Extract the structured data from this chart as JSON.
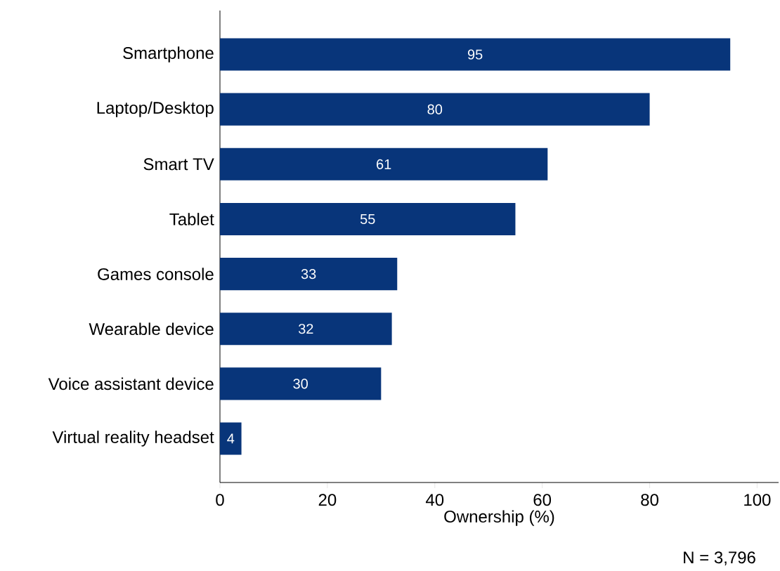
{
  "chart_data": {
    "type": "bar",
    "orientation": "horizontal",
    "categories": [
      "Smartphone",
      "Laptop/Desktop",
      "Smart TV",
      "Tablet",
      "Games console",
      "Wearable device",
      "Voice assistant device",
      "Virtual reality headset"
    ],
    "values": [
      95,
      80,
      61,
      55,
      33,
      32,
      30,
      4
    ],
    "color": "#08357a",
    "xlim": [
      0,
      104
    ],
    "xticks": [
      0,
      20,
      40,
      60,
      80,
      100
    ],
    "xlabel": "Ownership (%)",
    "data_labels": true,
    "grid": false,
    "annotations": [
      "N = 3,796"
    ]
  }
}
